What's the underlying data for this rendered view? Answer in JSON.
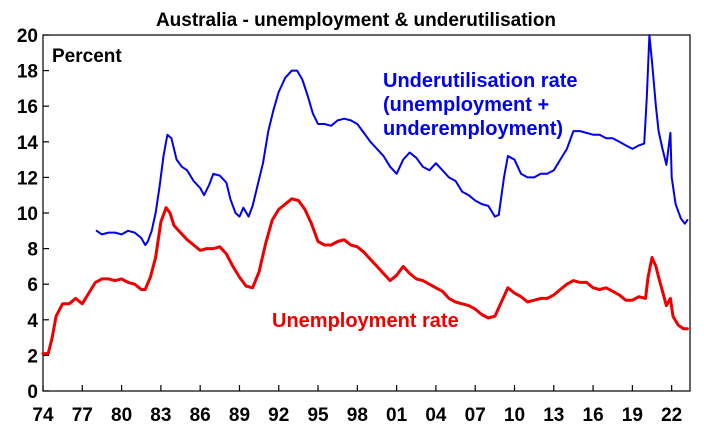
{
  "chart_data": {
    "type": "line",
    "title": "Australia - unemployment & underutilisation",
    "ylabel": "Percent",
    "xlim": [
      1974,
      2023.4
    ],
    "ylim": [
      0,
      20
    ],
    "yticks": [
      "0",
      "2",
      "4",
      "6",
      "8",
      "10",
      "12",
      "14",
      "16",
      "18",
      "20"
    ],
    "xticks": [
      {
        "value": 1974,
        "label": "74"
      },
      {
        "value": 1977,
        "label": "77"
      },
      {
        "value": 1980,
        "label": "80"
      },
      {
        "value": 1983,
        "label": "83"
      },
      {
        "value": 1986,
        "label": "86"
      },
      {
        "value": 1989,
        "label": "89"
      },
      {
        "value": 1992,
        "label": "92"
      },
      {
        "value": 1995,
        "label": "95"
      },
      {
        "value": 1998,
        "label": "98"
      },
      {
        "value": 2001,
        "label": "01"
      },
      {
        "value": 2004,
        "label": "04"
      },
      {
        "value": 2007,
        "label": "07"
      },
      {
        "value": 2010,
        "label": "10"
      },
      {
        "value": 2013,
        "label": "13"
      },
      {
        "value": 2016,
        "label": "16"
      },
      {
        "value": 2019,
        "label": "19"
      },
      {
        "value": 2022,
        "label": "22"
      }
    ],
    "grid": false,
    "series": [
      {
        "name": "Underutilisation rate (unemployment + underemployment)",
        "label_lines": [
          "Underutilisation rate",
          "(unemployment +",
          "underemployment)"
        ],
        "color": "#0000ee",
        "points": [
          [
            1978.1,
            9.0
          ],
          [
            1978.5,
            8.8
          ],
          [
            1979.0,
            8.9
          ],
          [
            1979.5,
            8.9
          ],
          [
            1980.0,
            8.8
          ],
          [
            1980.5,
            9.0
          ],
          [
            1981.0,
            8.9
          ],
          [
            1981.5,
            8.6
          ],
          [
            1981.8,
            8.2
          ],
          [
            1982.0,
            8.4
          ],
          [
            1982.3,
            9.0
          ],
          [
            1982.6,
            10.0
          ],
          [
            1982.9,
            11.5
          ],
          [
            1983.2,
            13.2
          ],
          [
            1983.5,
            14.4
          ],
          [
            1983.8,
            14.2
          ],
          [
            1984.2,
            13.0
          ],
          [
            1984.6,
            12.6
          ],
          [
            1985.0,
            12.4
          ],
          [
            1985.5,
            11.8
          ],
          [
            1986.0,
            11.4
          ],
          [
            1986.3,
            11.0
          ],
          [
            1986.7,
            11.6
          ],
          [
            1987.0,
            12.2
          ],
          [
            1987.5,
            12.1
          ],
          [
            1988.0,
            11.7
          ],
          [
            1988.3,
            10.8
          ],
          [
            1988.7,
            10.0
          ],
          [
            1989.0,
            9.8
          ],
          [
            1989.3,
            10.3
          ],
          [
            1989.7,
            9.8
          ],
          [
            1990.0,
            10.4
          ],
          [
            1990.4,
            11.6
          ],
          [
            1990.8,
            12.8
          ],
          [
            1991.2,
            14.6
          ],
          [
            1991.6,
            15.8
          ],
          [
            1992.0,
            16.8
          ],
          [
            1992.5,
            17.6
          ],
          [
            1993.0,
            18.0
          ],
          [
            1993.4,
            18.0
          ],
          [
            1993.8,
            17.5
          ],
          [
            1994.2,
            16.6
          ],
          [
            1994.6,
            15.6
          ],
          [
            1995.0,
            15.0
          ],
          [
            1995.5,
            15.0
          ],
          [
            1996.0,
            14.9
          ],
          [
            1996.5,
            15.2
          ],
          [
            1997.0,
            15.3
          ],
          [
            1997.5,
            15.2
          ],
          [
            1998.0,
            15.0
          ],
          [
            1998.5,
            14.5
          ],
          [
            1999.0,
            14.0
          ],
          [
            1999.5,
            13.6
          ],
          [
            2000.0,
            13.2
          ],
          [
            2000.5,
            12.6
          ],
          [
            2001.0,
            12.2
          ],
          [
            2001.5,
            13.0
          ],
          [
            2002.0,
            13.4
          ],
          [
            2002.5,
            13.1
          ],
          [
            2003.0,
            12.6
          ],
          [
            2003.5,
            12.4
          ],
          [
            2004.0,
            12.8
          ],
          [
            2004.5,
            12.4
          ],
          [
            2005.0,
            12.0
          ],
          [
            2005.5,
            11.8
          ],
          [
            2006.0,
            11.2
          ],
          [
            2006.5,
            11.0
          ],
          [
            2007.0,
            10.7
          ],
          [
            2007.5,
            10.5
          ],
          [
            2008.0,
            10.4
          ],
          [
            2008.5,
            9.8
          ],
          [
            2008.8,
            9.9
          ],
          [
            2009.2,
            12.0
          ],
          [
            2009.5,
            13.2
          ],
          [
            2010.0,
            13.0
          ],
          [
            2010.5,
            12.2
          ],
          [
            2011.0,
            12.0
          ],
          [
            2011.5,
            12.0
          ],
          [
            2012.0,
            12.2
          ],
          [
            2012.5,
            12.2
          ],
          [
            2013.0,
            12.4
          ],
          [
            2013.5,
            13.0
          ],
          [
            2014.0,
            13.6
          ],
          [
            2014.5,
            14.6
          ],
          [
            2015.0,
            14.6
          ],
          [
            2015.5,
            14.5
          ],
          [
            2016.0,
            14.4
          ],
          [
            2016.5,
            14.4
          ],
          [
            2017.0,
            14.2
          ],
          [
            2017.5,
            14.2
          ],
          [
            2018.0,
            14.0
          ],
          [
            2018.5,
            13.8
          ],
          [
            2019.0,
            13.6
          ],
          [
            2019.5,
            13.8
          ],
          [
            2019.9,
            13.9
          ],
          [
            2020.1,
            16.5
          ],
          [
            2020.3,
            20.0
          ],
          [
            2020.5,
            18.5
          ],
          [
            2020.8,
            16.0
          ],
          [
            2021.0,
            14.6
          ],
          [
            2021.3,
            13.6
          ],
          [
            2021.6,
            12.7
          ],
          [
            2021.9,
            14.5
          ],
          [
            2022.0,
            12.0
          ],
          [
            2022.3,
            10.5
          ],
          [
            2022.7,
            9.7
          ],
          [
            2023.0,
            9.4
          ],
          [
            2023.2,
            9.6
          ]
        ]
      },
      {
        "name": "Unemployment rate",
        "label_lines": [
          "Unemployment rate"
        ],
        "color": "#ee0000",
        "points": [
          [
            1974.0,
            2.1
          ],
          [
            1974.4,
            2.1
          ],
          [
            1974.7,
            3.0
          ],
          [
            1975.0,
            4.2
          ],
          [
            1975.5,
            4.9
          ],
          [
            1976.0,
            4.9
          ],
          [
            1976.5,
            5.2
          ],
          [
            1977.0,
            4.9
          ],
          [
            1977.5,
            5.5
          ],
          [
            1978.0,
            6.1
          ],
          [
            1978.5,
            6.3
          ],
          [
            1979.0,
            6.3
          ],
          [
            1979.5,
            6.2
          ],
          [
            1980.0,
            6.3
          ],
          [
            1980.5,
            6.1
          ],
          [
            1981.0,
            6.0
          ],
          [
            1981.5,
            5.7
          ],
          [
            1981.8,
            5.7
          ],
          [
            1982.2,
            6.4
          ],
          [
            1982.6,
            7.5
          ],
          [
            1983.0,
            9.5
          ],
          [
            1983.4,
            10.3
          ],
          [
            1983.7,
            10.0
          ],
          [
            1984.0,
            9.3
          ],
          [
            1984.5,
            8.9
          ],
          [
            1985.0,
            8.5
          ],
          [
            1985.5,
            8.2
          ],
          [
            1986.0,
            7.9
          ],
          [
            1986.5,
            8.0
          ],
          [
            1987.0,
            8.0
          ],
          [
            1987.5,
            8.1
          ],
          [
            1988.0,
            7.7
          ],
          [
            1988.5,
            7.0
          ],
          [
            1989.0,
            6.4
          ],
          [
            1989.5,
            5.9
          ],
          [
            1990.0,
            5.8
          ],
          [
            1990.5,
            6.7
          ],
          [
            1991.0,
            8.3
          ],
          [
            1991.5,
            9.6
          ],
          [
            1992.0,
            10.2
          ],
          [
            1992.5,
            10.5
          ],
          [
            1993.0,
            10.8
          ],
          [
            1993.5,
            10.7
          ],
          [
            1994.0,
            10.2
          ],
          [
            1994.5,
            9.4
          ],
          [
            1995.0,
            8.4
          ],
          [
            1995.5,
            8.2
          ],
          [
            1996.0,
            8.2
          ],
          [
            1996.5,
            8.4
          ],
          [
            1997.0,
            8.5
          ],
          [
            1997.5,
            8.2
          ],
          [
            1998.0,
            8.1
          ],
          [
            1998.5,
            7.8
          ],
          [
            1999.0,
            7.4
          ],
          [
            1999.5,
            7.0
          ],
          [
            2000.0,
            6.6
          ],
          [
            2000.5,
            6.2
          ],
          [
            2001.0,
            6.5
          ],
          [
            2001.5,
            7.0
          ],
          [
            2002.0,
            6.6
          ],
          [
            2002.5,
            6.3
          ],
          [
            2003.0,
            6.2
          ],
          [
            2003.5,
            6.0
          ],
          [
            2004.0,
            5.8
          ],
          [
            2004.5,
            5.6
          ],
          [
            2005.0,
            5.2
          ],
          [
            2005.5,
            5.0
          ],
          [
            2006.0,
            4.9
          ],
          [
            2006.5,
            4.8
          ],
          [
            2007.0,
            4.6
          ],
          [
            2007.5,
            4.3
          ],
          [
            2008.0,
            4.1
          ],
          [
            2008.5,
            4.2
          ],
          [
            2009.0,
            5.0
          ],
          [
            2009.5,
            5.8
          ],
          [
            2010.0,
            5.5
          ],
          [
            2010.5,
            5.3
          ],
          [
            2011.0,
            5.0
          ],
          [
            2011.5,
            5.1
          ],
          [
            2012.0,
            5.2
          ],
          [
            2012.5,
            5.2
          ],
          [
            2013.0,
            5.4
          ],
          [
            2013.5,
            5.7
          ],
          [
            2014.0,
            6.0
          ],
          [
            2014.5,
            6.2
          ],
          [
            2015.0,
            6.1
          ],
          [
            2015.5,
            6.1
          ],
          [
            2016.0,
            5.8
          ],
          [
            2016.5,
            5.7
          ],
          [
            2017.0,
            5.8
          ],
          [
            2017.5,
            5.6
          ],
          [
            2018.0,
            5.4
          ],
          [
            2018.5,
            5.1
          ],
          [
            2019.0,
            5.1
          ],
          [
            2019.5,
            5.3
          ],
          [
            2020.0,
            5.2
          ],
          [
            2020.2,
            6.4
          ],
          [
            2020.5,
            7.5
          ],
          [
            2020.8,
            7.0
          ],
          [
            2021.0,
            6.4
          ],
          [
            2021.3,
            5.6
          ],
          [
            2021.6,
            4.8
          ],
          [
            2021.9,
            5.2
          ],
          [
            2022.1,
            4.2
          ],
          [
            2022.5,
            3.7
          ],
          [
            2022.9,
            3.5
          ],
          [
            2023.2,
            3.5
          ]
        ]
      }
    ]
  }
}
